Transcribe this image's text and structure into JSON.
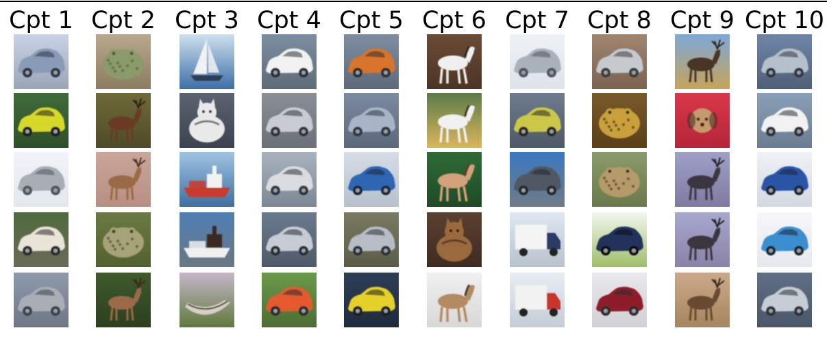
{
  "figure": {
    "columns": [
      {
        "title": "Cpt 1",
        "images": [
          {
            "icon": "car-icon",
            "bg": "#c9d3e6",
            "ground": "#9aa5b5",
            "fg": "#8a9bb8",
            "accent": "#2d3442"
          },
          {
            "icon": "car-icon",
            "bg": "#3f6b3a",
            "ground": "#2f4f2a",
            "fg": "#d7d92a",
            "accent": "#1e1e1e"
          },
          {
            "icon": "car-icon",
            "bg": "#f1f4f8",
            "ground": "#e3e7ee",
            "fg": "#a9aeb6",
            "accent": "#505660"
          },
          {
            "icon": "car-icon",
            "bg": "#4f6a3e",
            "ground": "#6b6a57",
            "fg": "#e8e4d7",
            "accent": "#2b2b2b"
          },
          {
            "icon": "car-icon",
            "bg": "#8f9aad",
            "ground": "#6f7685",
            "fg": "#a8adb6",
            "accent": "#3a3f48"
          }
        ]
      },
      {
        "title": "Cpt 2",
        "images": [
          {
            "icon": "frog-icon",
            "bg": "#b9a88d",
            "ground": "#8c7c60",
            "fg": "#8b9a6a",
            "accent": "#4f5a3a"
          },
          {
            "icon": "deer-icon",
            "bg": "#6e6a38",
            "ground": "#4e4b28",
            "fg": "#6b3b22",
            "accent": "#2d1c12"
          },
          {
            "icon": "deer-icon",
            "bg": "#c9a59a",
            "ground": "#b88f82",
            "fg": "#9a6a45",
            "accent": "#4a2f1d"
          },
          {
            "icon": "frog-icon",
            "bg": "#6b7a44",
            "ground": "#53602f",
            "fg": "#a5a377",
            "accent": "#3d3f28"
          },
          {
            "icon": "deer-icon",
            "bg": "#3f5a2d",
            "ground": "#2b3f1e",
            "fg": "#9b6a4a",
            "accent": "#3a2518"
          }
        ]
      },
      {
        "title": "Cpt 3",
        "images": [
          {
            "icon": "sailboat-icon",
            "bg": "#cfe0ee",
            "ground": "#3d6fa8",
            "fg": "#f2f2f2",
            "accent": "#2f3d55"
          },
          {
            "icon": "cat-icon",
            "bg": "#5c6270",
            "ground": "#3d4250",
            "fg": "#e9e9e9",
            "accent": "#2a2a2a"
          },
          {
            "icon": "ship-icon",
            "bg": "#9fc3e3",
            "ground": "#3f6fa0",
            "fg": "#c93a2a",
            "accent": "#f2f2f2"
          },
          {
            "icon": "ship-icon",
            "bg": "#4f7fb8",
            "ground": "#6a7780",
            "fg": "#f0f0f0",
            "accent": "#3b2a24"
          },
          {
            "icon": "boat-icon",
            "bg": "#c6b6c9",
            "ground": "#5f7a3e",
            "fg": "#d7d0c4",
            "accent": "#3c3530"
          }
        ]
      },
      {
        "title": "Cpt 4",
        "images": [
          {
            "icon": "car-icon",
            "bg": "#7d8ea2",
            "ground": "#5e6b78",
            "fg": "#f2f2f2",
            "accent": "#2a2f36"
          },
          {
            "icon": "car-icon",
            "bg": "#8a8f96",
            "ground": "#6b7078",
            "fg": "#c8ccd2",
            "accent": "#2e3238"
          },
          {
            "icon": "car-icon",
            "bg": "#a8b3bf",
            "ground": "#7c8794",
            "fg": "#d9dde2",
            "accent": "#2e3238"
          },
          {
            "icon": "car-icon",
            "bg": "#6b7a8f",
            "ground": "#4f5a69",
            "fg": "#c7ccd4",
            "accent": "#262a30"
          },
          {
            "icon": "car-icon",
            "bg": "#6b9a4a",
            "ground": "#4c6d35",
            "fg": "#e45a2f",
            "accent": "#2b2b2b"
          }
        ]
      },
      {
        "title": "Cpt 5",
        "images": [
          {
            "icon": "car-icon",
            "bg": "#7e8da0",
            "ground": "#5d6a7b",
            "fg": "#d8742c",
            "accent": "#2f2f2f"
          },
          {
            "icon": "car-icon",
            "bg": "#7c8aa0",
            "ground": "#5b677a",
            "fg": "#a8b5c8",
            "accent": "#2f3542"
          },
          {
            "icon": "car-icon",
            "bg": "#d7dde6",
            "ground": "#b7c0cc",
            "fg": "#2f66b3",
            "accent": "#1f2633"
          },
          {
            "icon": "car-icon",
            "bg": "#7a7a62",
            "ground": "#5b5c48",
            "fg": "#b7bcc5",
            "accent": "#2b2e34"
          },
          {
            "icon": "car-icon",
            "bg": "#2d3e57",
            "ground": "#1f2b3d",
            "fg": "#e6d12c",
            "accent": "#1a1a1a"
          }
        ]
      },
      {
        "title": "Cpt 6",
        "images": [
          {
            "icon": "horse-icon",
            "bg": "#6b4a35",
            "ground": "#4d3425",
            "fg": "#efefef",
            "accent": "#2a211c"
          },
          {
            "icon": "horse-icon",
            "bg": "#5d7a4a",
            "ground": "#d9b65a",
            "fg": "#f1f1f1",
            "accent": "#3a3328"
          },
          {
            "icon": "horse-icon",
            "bg": "#2f6a38",
            "ground": "#1f4a26",
            "fg": "#d4a27a",
            "accent": "#5a3a25"
          },
          {
            "icon": "cat-icon",
            "bg": "#5c4030",
            "ground": "#3e2b20",
            "fg": "#9a6a3c",
            "accent": "#2b1e15"
          },
          {
            "icon": "horse-icon",
            "bg": "#f0f0f0",
            "ground": "#d8d8d8",
            "fg": "#b48a62",
            "accent": "#4a3526"
          }
        ]
      },
      {
        "title": "Cpt 7",
        "images": [
          {
            "icon": "car-icon",
            "bg": "#eef1f5",
            "ground": "#dfe3ea",
            "fg": "#a9b1bb",
            "accent": "#4d5360"
          },
          {
            "icon": "car-icon",
            "bg": "#6e7c8e",
            "ground": "#4e5866",
            "fg": "#cbc84a",
            "accent": "#262626"
          },
          {
            "icon": "car-icon",
            "bg": "#3b78c0",
            "ground": "#6f7a88",
            "fg": "#4f5864",
            "accent": "#22262c"
          },
          {
            "icon": "truck-icon",
            "bg": "#dfe7f0",
            "ground": "#b9c2cc",
            "fg": "#f4f4f4",
            "accent": "#2b3a66"
          },
          {
            "icon": "truck-icon",
            "bg": "#e7edf3",
            "ground": "#c4ccd6",
            "fg": "#f2f2f2",
            "accent": "#c8342c"
          }
        ]
      },
      {
        "title": "Cpt 8",
        "images": [
          {
            "icon": "car-icon",
            "bg": "#a08570",
            "ground": "#7a6350",
            "fg": "#c6c9ce",
            "accent": "#3b3b3b"
          },
          {
            "icon": "frog-icon",
            "bg": "#7a5a2a",
            "ground": "#5a3f18",
            "fg": "#c9a03a",
            "accent": "#3a2a12"
          },
          {
            "icon": "frog-icon",
            "bg": "#8a9a6a",
            "ground": "#6a7a4a",
            "fg": "#b59a6a",
            "accent": "#3f3626"
          },
          {
            "icon": "car-icon",
            "bg": "#f3f6ee",
            "ground": "#9fbf6a",
            "fg": "#22305a",
            "accent": "#111111"
          },
          {
            "icon": "car-icon",
            "bg": "#e9e9ec",
            "ground": "#d0d0d6",
            "fg": "#8f1f2a",
            "accent": "#2b2b2b"
          }
        ]
      },
      {
        "title": "Cpt 9",
        "images": [
          {
            "icon": "deer-icon",
            "bg": "#7fa8d8",
            "ground": "#c6a35a",
            "fg": "#4a3526",
            "accent": "#2b2018"
          },
          {
            "icon": "dog-icon",
            "bg": "#d9384a",
            "ground": "#b52538",
            "fg": "#c79a6a",
            "accent": "#3a2a20"
          },
          {
            "icon": "deer-icon",
            "bg": "#9fa0c8",
            "ground": "#7f7aa0",
            "fg": "#3a3540",
            "accent": "#201c24"
          },
          {
            "icon": "deer-icon",
            "bg": "#a8a8d0",
            "ground": "#8a82a6",
            "fg": "#3b3640",
            "accent": "#1f1a22"
          },
          {
            "icon": "deer-icon",
            "bg": "#c9a98a",
            "ground": "#a6865f",
            "fg": "#6b4a33",
            "accent": "#2f2218"
          }
        ]
      },
      {
        "title": "Cpt 10",
        "images": [
          {
            "icon": "car-icon",
            "bg": "#6f86a8",
            "ground": "#505f78",
            "fg": "#b6c0cc",
            "accent": "#2f3540"
          },
          {
            "icon": "car-icon",
            "bg": "#8aa0b8",
            "ground": "#6a7c92",
            "fg": "#f2f2f2",
            "accent": "#2a2f36"
          },
          {
            "icon": "car-icon",
            "bg": "#eef1f6",
            "ground": "#d3d9e2",
            "fg": "#2c55a6",
            "accent": "#1f2633"
          },
          {
            "icon": "car-icon",
            "bg": "#f6f7f9",
            "ground": "#e5e8ee",
            "fg": "#3a8fd0",
            "accent": "#1f2633"
          },
          {
            "icon": "car-icon",
            "bg": "#5f6f86",
            "ground": "#4a5668",
            "fg": "#c7cdd6",
            "accent": "#2a2f36"
          }
        ]
      }
    ]
  }
}
